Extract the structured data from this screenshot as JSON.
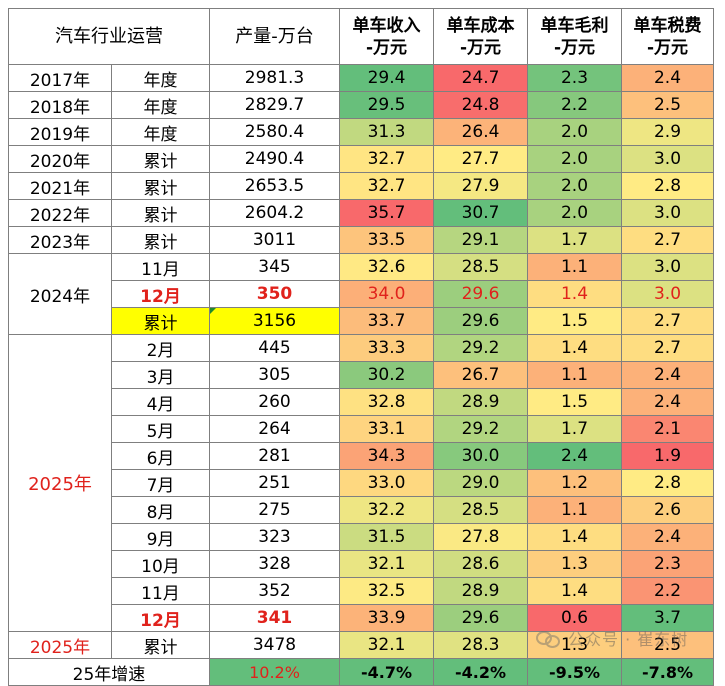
{
  "header": {
    "col1": "汽车行业运营",
    "col2": "产量-万台",
    "col3": "单车收入\n-万元",
    "col4": "单车成本\n-万元",
    "col5": "单车毛利\n-万元",
    "col6": "单车税费\n-万元"
  },
  "rows": [
    {
      "year": "2017年",
      "period": "年度",
      "prod": "2981.3",
      "rev": "29.4",
      "cost": "24.7",
      "margin": "2.3",
      "tax": "2.4"
    },
    {
      "year": "2018年",
      "period": "年度",
      "prod": "2829.7",
      "rev": "29.5",
      "cost": "24.8",
      "margin": "2.2",
      "tax": "2.5"
    },
    {
      "year": "2019年",
      "period": "年度",
      "prod": "2580.4",
      "rev": "31.3",
      "cost": "26.4",
      "margin": "2.0",
      "tax": "2.9"
    },
    {
      "year": "2020年",
      "period": "累计",
      "prod": "2490.4",
      "rev": "32.7",
      "cost": "27.7",
      "margin": "2.0",
      "tax": "3.0"
    },
    {
      "year": "2021年",
      "period": "累计",
      "prod": "2653.5",
      "rev": "32.7",
      "cost": "27.9",
      "margin": "2.0",
      "tax": "2.8"
    },
    {
      "year": "2022年",
      "period": "累计",
      "prod": "2604.2",
      "rev": "35.7",
      "cost": "30.7",
      "margin": "2.0",
      "tax": "3.0"
    },
    {
      "year": "2023年",
      "period": "累计",
      "prod": "3011",
      "rev": "33.5",
      "cost": "29.1",
      "margin": "1.7",
      "tax": "2.7"
    },
    {
      "year": "2024年",
      "period": "11月",
      "prod": "345",
      "rev": "32.6",
      "cost": "28.5",
      "margin": "1.1",
      "tax": "3.0"
    },
    {
      "period": "12月",
      "prod": "350",
      "rev": "34.0",
      "cost": "29.6",
      "margin": "1.4",
      "tax": "3.0"
    },
    {
      "period": "累计",
      "prod": "3156",
      "rev": "33.7",
      "cost": "29.6",
      "margin": "1.5",
      "tax": "2.7"
    },
    {
      "year": "2025年",
      "period": "2月",
      "prod": "445",
      "rev": "33.3",
      "cost": "29.2",
      "margin": "1.4",
      "tax": "2.7"
    },
    {
      "period": "3月",
      "prod": "305",
      "rev": "30.2",
      "cost": "26.7",
      "margin": "1.1",
      "tax": "2.4"
    },
    {
      "period": "4月",
      "prod": "260",
      "rev": "32.8",
      "cost": "28.9",
      "margin": "1.5",
      "tax": "2.4"
    },
    {
      "period": "5月",
      "prod": "264",
      "rev": "33.1",
      "cost": "29.2",
      "margin": "1.7",
      "tax": "2.1"
    },
    {
      "period": "6月",
      "prod": "281",
      "rev": "34.3",
      "cost": "30.0",
      "margin": "2.4",
      "tax": "1.9"
    },
    {
      "period": "7月",
      "prod": "251",
      "rev": "33.0",
      "cost": "29.0",
      "margin": "1.2",
      "tax": "2.8"
    },
    {
      "period": "8月",
      "prod": "275",
      "rev": "32.2",
      "cost": "28.5",
      "margin": "1.1",
      "tax": "2.6"
    },
    {
      "period": "9月",
      "prod": "323",
      "rev": "31.5",
      "cost": "27.8",
      "margin": "1.4",
      "tax": "2.4"
    },
    {
      "period": "10月",
      "prod": "328",
      "rev": "32.1",
      "cost": "28.6",
      "margin": "1.3",
      "tax": "2.3"
    },
    {
      "period": "11月",
      "prod": "352",
      "rev": "32.5",
      "cost": "28.9",
      "margin": "1.4",
      "tax": "2.2"
    },
    {
      "period": "12月",
      "prod": "341",
      "rev": "33.9",
      "cost": "29.6",
      "margin": "0.6",
      "tax": "3.7"
    },
    {
      "year": "2025年",
      "period": "累计",
      "prod": "3478",
      "rev": "32.1",
      "cost": "28.3",
      "margin": "1.3",
      "tax": "2.5"
    }
  ],
  "growth": {
    "label": "25年增速",
    "prod": "10.2%",
    "rev": "-4.7%",
    "cost": "-4.2%",
    "margin": "-9.5%",
    "tax": "-7.8%"
  },
  "colors": {
    "text_red": "#e0221c",
    "highlight_yellow": "#ffff00",
    "heat_low": "#63be7b",
    "heat_mid": "#ffeb84",
    "heat_high": "#f8696b"
  },
  "watermark": {
    "icon": "wechat-icon",
    "text": "公众号 · 崔东树"
  }
}
